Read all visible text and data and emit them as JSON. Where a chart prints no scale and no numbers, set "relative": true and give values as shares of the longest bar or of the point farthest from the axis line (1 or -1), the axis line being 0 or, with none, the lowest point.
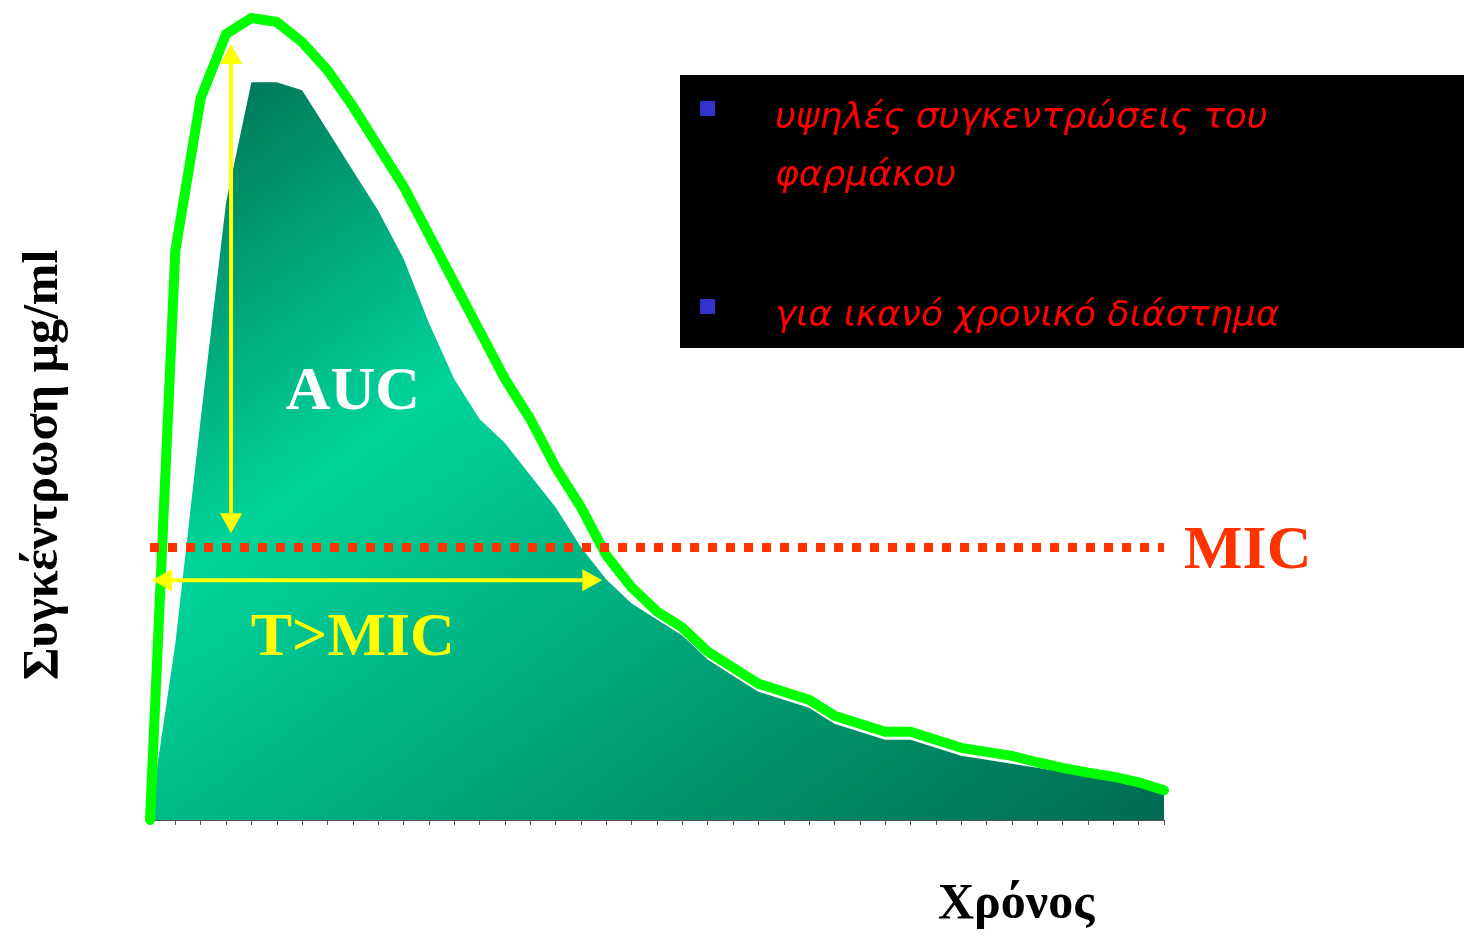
{
  "chart_data": {
    "type": "line",
    "relative": true,
    "xlabel": "Χρόνος",
    "ylabel": "Συγκέντρωση μg/ml",
    "marker": "none",
    "categories": [
      null,
      null,
      null,
      null,
      null,
      null,
      null,
      null,
      null,
      null,
      null,
      null,
      null,
      null,
      null,
      null,
      null,
      null,
      null,
      null,
      null,
      null,
      null,
      null,
      null,
      null,
      null,
      null,
      null,
      null,
      null,
      null,
      null,
      null,
      null,
      null,
      null,
      null,
      null,
      null,
      null
    ],
    "series": [
      {
        "type": "area",
        "color": "#00d49a",
        "values": [
          0.006,
          0.22,
          0.5,
          0.77,
          0.92,
          0.92,
          0.91,
          0.86,
          0.81,
          0.76,
          0.7,
          0.62,
          0.55,
          0.5,
          0.47,
          0.43,
          0.39,
          0.34,
          0.3,
          0.27,
          0.25,
          0.23,
          0.2,
          0.18,
          0.16,
          0.15,
          0.14,
          0.12,
          0.11,
          0.1,
          0.1,
          0.09,
          0.08,
          0.075,
          0.07,
          0.065,
          0.06,
          0.055,
          0.05,
          0.045,
          0.04
        ]
      },
      {
        "type": "line",
        "color": "#00ff00",
        "line_style": "solid",
        "values": [
          0,
          0.71,
          0.9,
          0.98,
          1,
          0.995,
          0.97,
          0.935,
          0.89,
          0.84,
          0.79,
          0.73,
          0.67,
          0.61,
          0.55,
          0.5,
          0.44,
          0.39,
          0.33,
          0.29,
          0.26,
          0.24,
          0.21,
          0.19,
          0.17,
          0.16,
          0.15,
          0.13,
          0.12,
          0.11,
          0.11,
          0.1,
          0.09,
          0.085,
          0.08,
          0.072,
          0.065,
          0.059,
          0.054,
          0.047,
          0.037
        ]
      }
    ],
    "ref_lines": [
      {
        "axis": "y",
        "value": 0.34,
        "label": "MIC",
        "color": "#ff3300",
        "line_style": "dotted"
      }
    ],
    "annotations": [
      "AUC",
      "T>MIC",
      "υψηλές συγκεντρώσεις του φαρμάκου",
      "για ικανό χρονικό διάστημα"
    ]
  }
}
